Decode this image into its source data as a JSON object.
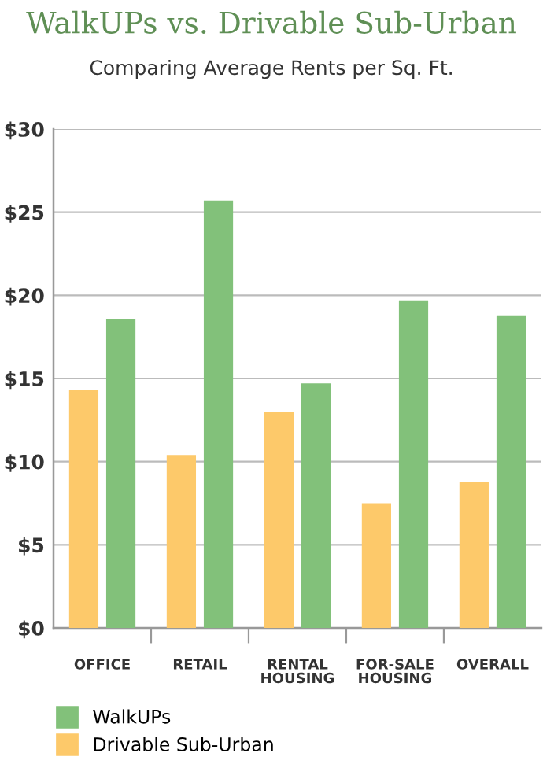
{
  "chart_data": {
    "type": "bar",
    "title": "WalkUPs vs. Drivable Sub-Urban",
    "subtitle": "Comparing Average Rents per Sq. Ft.",
    "categories": [
      "OFFICE",
      "RETAIL",
      "RENTAL\nHOUSING",
      "FOR-SALE\nHOUSING",
      "OVERALL"
    ],
    "series": [
      {
        "name": "Drivable Sub-Urban",
        "color": "#fdc96a",
        "values": [
          14.3,
          10.4,
          13.0,
          7.5,
          8.8
        ]
      },
      {
        "name": "WalkUPs",
        "color": "#82c17a",
        "values": [
          18.6,
          25.7,
          14.7,
          19.7,
          18.8
        ]
      }
    ],
    "ylim": [
      0,
      30
    ],
    "yticks": [
      {
        "value": 0,
        "label": "$0"
      },
      {
        "value": 5,
        "label": "$5"
      },
      {
        "value": 10,
        "label": "$10"
      },
      {
        "value": 15,
        "label": "$15"
      },
      {
        "value": 20,
        "label": "$20"
      },
      {
        "value": 25,
        "label": "$25"
      },
      {
        "value": 30,
        "label": "$30"
      }
    ],
    "grid": "y",
    "legend": "bottom"
  }
}
